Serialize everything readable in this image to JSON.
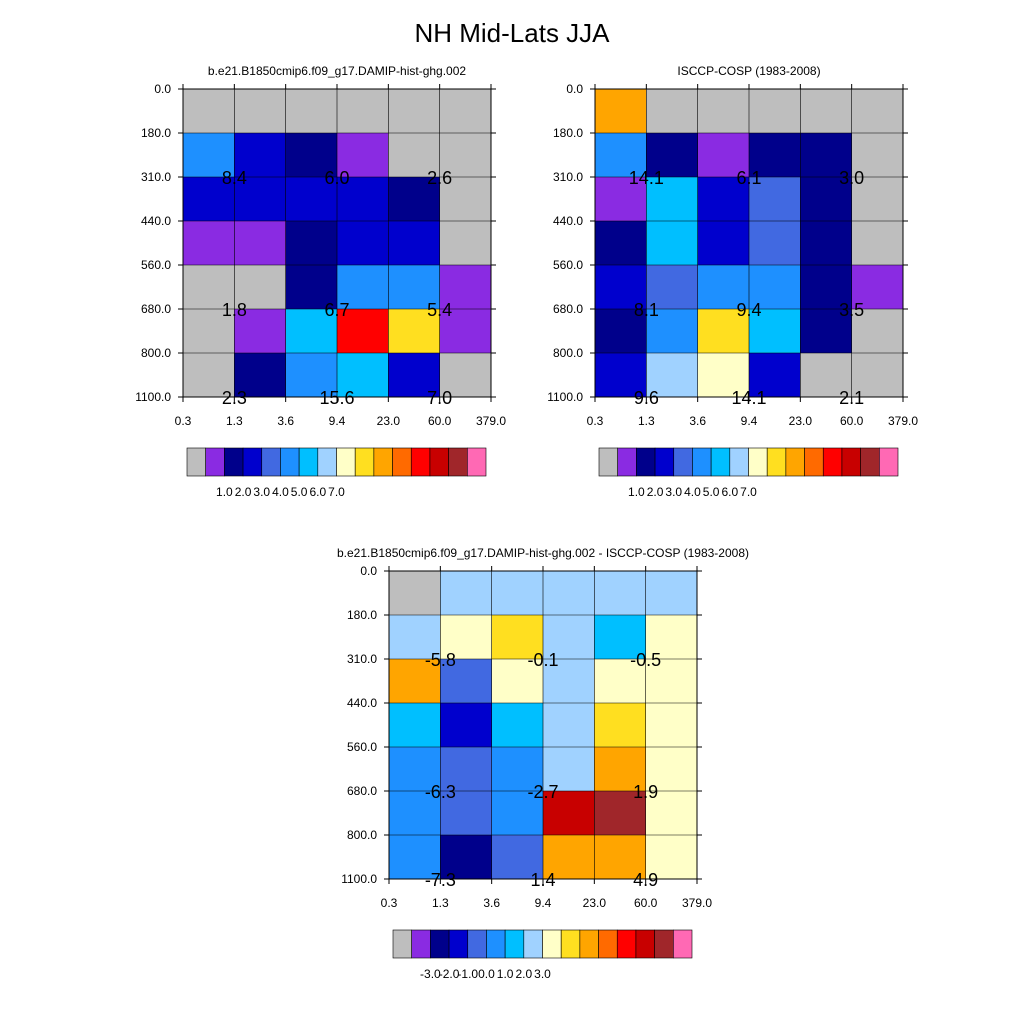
{
  "title": "NH Mid-Lats JJA",
  "chart_data": [
    {
      "type": "heatmap",
      "title": "b.e21.B1850cmip6.f09_g17.DAMIP-hist-ghg.002",
      "x_tick_labels": [
        "0.3",
        "1.3",
        "3.6",
        "9.4",
        "23.0",
        "60.0",
        "379.0"
      ],
      "y_tick_labels": [
        "0.0",
        "180.0",
        "310.0",
        "440.0",
        "560.0",
        "680.0",
        "800.0",
        "1100.0"
      ],
      "cells": [
        [
          "#bebebe",
          "#bebebe",
          "#bebebe",
          "#bebebe",
          "#bebebe",
          "#bebebe"
        ],
        [
          "#1e90ff",
          "#0000cd",
          "#00008b",
          "#8a2be2",
          "#bebebe",
          "#bebebe"
        ],
        [
          "#0000cd",
          "#0000cd",
          "#0000cd",
          "#0000cd",
          "#00008b",
          "#bebebe"
        ],
        [
          "#8a2be2",
          "#8a2be2",
          "#00008b",
          "#0000cd",
          "#0000cd",
          "#bebebe"
        ],
        [
          "#bebebe",
          "#bebebe",
          "#00008b",
          "#1e90ff",
          "#1e90ff",
          "#8a2be2"
        ],
        [
          "#bebebe",
          "#8a2be2",
          "#00bfff",
          "#ff0000",
          "#ffdf20",
          "#8a2be2"
        ],
        [
          "#bebebe",
          "#00008b",
          "#1e90ff",
          "#00bfff",
          "#0000cd",
          "#bebebe"
        ]
      ],
      "annotations": [
        {
          "text": "8.4",
          "col": 1,
          "row": 1
        },
        {
          "text": "6.0",
          "col": 3,
          "row": 1
        },
        {
          "text": "2.6",
          "col": 5,
          "row": 1
        },
        {
          "text": "1.8",
          "col": 1,
          "row": 4
        },
        {
          "text": "6.7",
          "col": 3,
          "row": 4
        },
        {
          "text": "5.4",
          "col": 5,
          "row": 4
        },
        {
          "text": "2.3",
          "col": 1,
          "row": 6
        },
        {
          "text": "15.6",
          "col": 3,
          "row": 6
        },
        {
          "text": "7.0",
          "col": 5,
          "row": 6
        }
      ],
      "colorbar": {
        "colors": [
          "#bebebe",
          "#8a2be2",
          "#00008b",
          "#0000cd",
          "#4169e1",
          "#1e90ff",
          "#00bfff",
          "#a0d2ff",
          "#ffffc8",
          "#ffdf20",
          "#ffa500",
          "#ff6a00",
          "#ff0000",
          "#c80000",
          "#a0262a",
          "#ff69b4"
        ],
        "labels": [
          "1.0",
          "2.0",
          "3.0",
          "4.0",
          "5.0",
          "6.0",
          "7.0"
        ]
      }
    },
    {
      "type": "heatmap",
      "title": "ISCCP-COSP (1983-2008)",
      "x_tick_labels": [
        "0.3",
        "1.3",
        "3.6",
        "9.4",
        "23.0",
        "60.0",
        "379.0"
      ],
      "y_tick_labels": [
        "0.0",
        "180.0",
        "310.0",
        "440.0",
        "560.0",
        "680.0",
        "800.0",
        "1100.0"
      ],
      "cells": [
        [
          "#ffa500",
          "#bebebe",
          "#bebebe",
          "#bebebe",
          "#bebebe",
          "#bebebe"
        ],
        [
          "#1e90ff",
          "#00008b",
          "#8a2be2",
          "#00008b",
          "#00008b",
          "#bebebe"
        ],
        [
          "#8a2be2",
          "#00bfff",
          "#0000cd",
          "#4169e1",
          "#00008b",
          "#bebebe"
        ],
        [
          "#00008b",
          "#00bfff",
          "#0000cd",
          "#4169e1",
          "#00008b",
          "#bebebe"
        ],
        [
          "#0000cd",
          "#4169e1",
          "#1e90ff",
          "#1e90ff",
          "#00008b",
          "#8a2be2"
        ],
        [
          "#00008b",
          "#1e90ff",
          "#ffdf20",
          "#00bfff",
          "#00008b",
          "#bebebe"
        ],
        [
          "#0000cd",
          "#a0d2ff",
          "#ffffc8",
          "#0000cd",
          "#bebebe",
          "#bebebe"
        ]
      ],
      "annotations": [
        {
          "text": "14.1",
          "col": 1,
          "row": 1
        },
        {
          "text": "6.1",
          "col": 3,
          "row": 1
        },
        {
          "text": "3.0",
          "col": 5,
          "row": 1
        },
        {
          "text": "8.1",
          "col": 1,
          "row": 4
        },
        {
          "text": "9.4",
          "col": 3,
          "row": 4
        },
        {
          "text": "3.5",
          "col": 5,
          "row": 4
        },
        {
          "text": "9.6",
          "col": 1,
          "row": 6
        },
        {
          "text": "14.1",
          "col": 3,
          "row": 6
        },
        {
          "text": "2.1",
          "col": 5,
          "row": 6
        }
      ],
      "colorbar": {
        "colors": [
          "#bebebe",
          "#8a2be2",
          "#00008b",
          "#0000cd",
          "#4169e1",
          "#1e90ff",
          "#00bfff",
          "#a0d2ff",
          "#ffffc8",
          "#ffdf20",
          "#ffa500",
          "#ff6a00",
          "#ff0000",
          "#c80000",
          "#a0262a",
          "#ff69b4"
        ],
        "labels": [
          "1.0",
          "2.0",
          "3.0",
          "4.0",
          "5.0",
          "6.0",
          "7.0"
        ]
      }
    },
    {
      "type": "heatmap",
      "title": "b.e21.B1850cmip6.f09_g17.DAMIP-hist-ghg.002 - ISCCP-COSP (1983-2008)",
      "x_tick_labels": [
        "0.3",
        "1.3",
        "3.6",
        "9.4",
        "23.0",
        "60.0",
        "379.0"
      ],
      "y_tick_labels": [
        "0.0",
        "180.0",
        "310.0",
        "440.0",
        "560.0",
        "680.0",
        "800.0",
        "1100.0"
      ],
      "cells": [
        [
          "#bebebe",
          "#a0d2ff",
          "#a0d2ff",
          "#a0d2ff",
          "#a0d2ff",
          "#a0d2ff"
        ],
        [
          "#a0d2ff",
          "#ffffc8",
          "#ffdf20",
          "#a0d2ff",
          "#00bfff",
          "#ffffc8"
        ],
        [
          "#ffa500",
          "#4169e1",
          "#ffffc8",
          "#a0d2ff",
          "#ffffc8",
          "#ffffc8"
        ],
        [
          "#00bfff",
          "#0000cd",
          "#00bfff",
          "#a0d2ff",
          "#ffdf20",
          "#ffffc8"
        ],
        [
          "#1e90ff",
          "#4169e1",
          "#1e90ff",
          "#a0d2ff",
          "#ffa500",
          "#ffffc8"
        ],
        [
          "#1e90ff",
          "#4169e1",
          "#1e90ff",
          "#c80000",
          "#a0262a",
          "#ffffc8"
        ],
        [
          "#1e90ff",
          "#00008b",
          "#4169e1",
          "#ffa500",
          "#ffa500",
          "#ffffc8"
        ]
      ],
      "annotations": [
        {
          "text": "-5.8",
          "col": 1,
          "row": 1
        },
        {
          "text": "-0.1",
          "col": 3,
          "row": 1
        },
        {
          "text": "-0.5",
          "col": 5,
          "row": 1
        },
        {
          "text": "-6.3",
          "col": 1,
          "row": 4
        },
        {
          "text": "-2.7",
          "col": 3,
          "row": 4
        },
        {
          "text": "1.9",
          "col": 5,
          "row": 4
        },
        {
          "text": "-7.3",
          "col": 1,
          "row": 6
        },
        {
          "text": "1.4",
          "col": 3,
          "row": 6
        },
        {
          "text": "4.9",
          "col": 5,
          "row": 6
        }
      ],
      "colorbar": {
        "colors": [
          "#bebebe",
          "#8a2be2",
          "#00008b",
          "#0000cd",
          "#4169e1",
          "#1e90ff",
          "#00bfff",
          "#a0d2ff",
          "#ffffc8",
          "#ffdf20",
          "#ffa500",
          "#ff6a00",
          "#ff0000",
          "#c80000",
          "#a0262a",
          "#ff69b4"
        ],
        "labels": [
          "-3.0",
          "-2.0",
          "-1.0",
          "0.0",
          "1.0",
          "2.0",
          "3.0"
        ]
      }
    }
  ]
}
